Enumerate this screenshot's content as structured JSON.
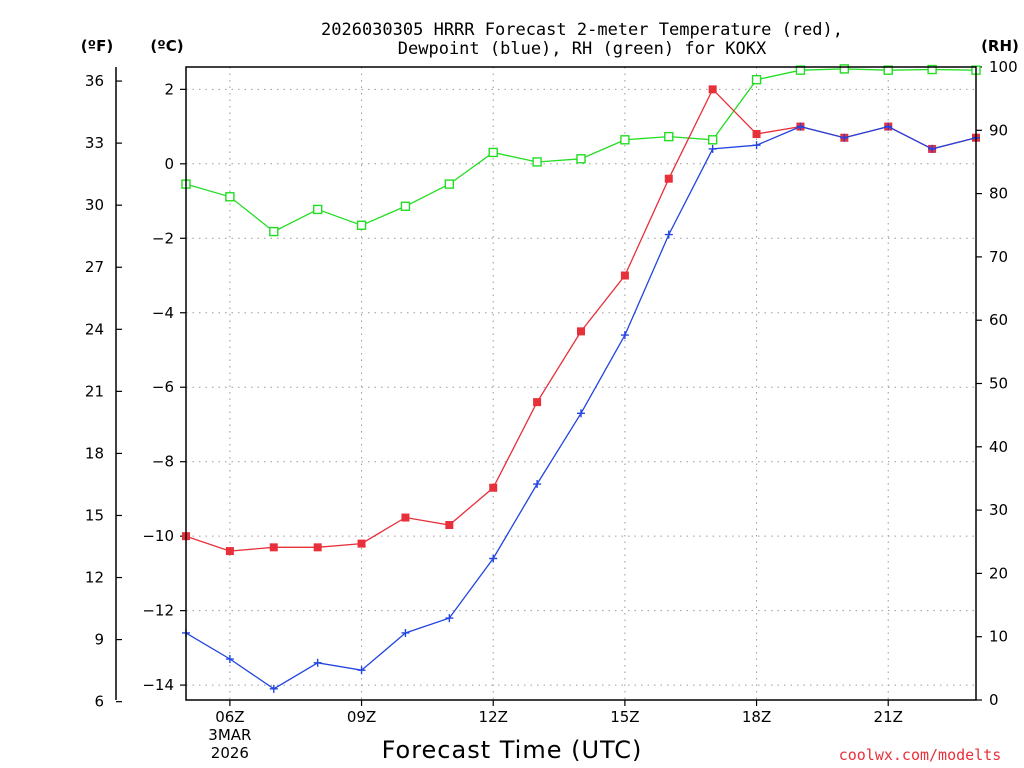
{
  "chart_data": {
    "type": "line",
    "title_line1": "2026030305 HRRR Forecast 2-meter Temperature (red),",
    "title_line2": "Dewpoint (blue), RH (green) for KOKX",
    "xlabel": "Forecast Time (UTC)",
    "credit": "coolwx.com/modelts",
    "credit_color": "#e8303a",
    "units": {
      "fahrenheit": "(ºF)",
      "celsius": "(ºC)",
      "rh": "(RH)"
    },
    "x": [
      5,
      6,
      7,
      8,
      9,
      10,
      11,
      12,
      13,
      14,
      15,
      16,
      17,
      18,
      19,
      20,
      21,
      22,
      23
    ],
    "xlim": [
      5,
      23
    ],
    "x_ticks": [
      {
        "x": 6,
        "label": "06Z",
        "sub1": "3MAR",
        "sub2": "2026"
      },
      {
        "x": 9,
        "label": "09Z"
      },
      {
        "x": 12,
        "label": "12Z"
      },
      {
        "x": 15,
        "label": "15Z"
      },
      {
        "x": 18,
        "label": "18Z"
      },
      {
        "x": 21,
        "label": "21Z"
      }
    ],
    "celsius_axis": {
      "range": [
        -14.4,
        2.6
      ],
      "ticks": [
        2,
        0,
        -2,
        -4,
        -6,
        -8,
        -10,
        -12,
        -14
      ],
      "tick_labels": [
        "2",
        "0",
        "−2",
        "−4",
        "−6",
        "−8",
        "−10",
        "−12",
        "−14"
      ]
    },
    "fahrenheit_axis": {
      "ticks": [
        36,
        33,
        30,
        27,
        24,
        21,
        18,
        15,
        12,
        9,
        6
      ],
      "tick_labels": [
        "36",
        "33",
        "30",
        "27",
        "24",
        "21",
        "18",
        "15",
        "12",
        "9",
        "6"
      ]
    },
    "rh_axis": {
      "range": [
        0,
        100
      ],
      "ticks": [
        100,
        90,
        80,
        70,
        60,
        50,
        40,
        30,
        20,
        10,
        0
      ],
      "tick_labels": [
        "100",
        "90",
        "80",
        "70",
        "60",
        "50",
        "40",
        "30",
        "20",
        "10",
        "0"
      ]
    },
    "series": [
      {
        "name": "Temperature",
        "axis": "celsius",
        "color": "#e8303a",
        "marker": "filled-square",
        "values": [
          -10.0,
          -10.4,
          -10.3,
          -10.3,
          -10.2,
          -9.5,
          -9.7,
          -8.7,
          -6.4,
          -4.5,
          -3.0,
          -0.4,
          2.0,
          0.8,
          1.0,
          0.7,
          1.0,
          0.4,
          0.7
        ]
      },
      {
        "name": "Dewpoint",
        "axis": "celsius",
        "color": "#2244e0",
        "marker": "plus",
        "values": [
          -12.6,
          -13.3,
          -14.1,
          -13.4,
          -13.6,
          -12.6,
          -12.2,
          -10.6,
          -8.6,
          -6.7,
          -4.6,
          -1.9,
          0.4,
          0.5,
          1.0,
          0.7,
          1.0,
          0.4,
          0.7
        ]
      },
      {
        "name": "RH",
        "axis": "rh",
        "color": "#22dd22",
        "marker": "open-square",
        "values": [
          81.5,
          79.5,
          74,
          77.5,
          75,
          78,
          81.5,
          86.5,
          85,
          85.5,
          88.5,
          89,
          88.5,
          98,
          99.5,
          99.7,
          99.5,
          99.6,
          99.5
        ]
      }
    ]
  }
}
